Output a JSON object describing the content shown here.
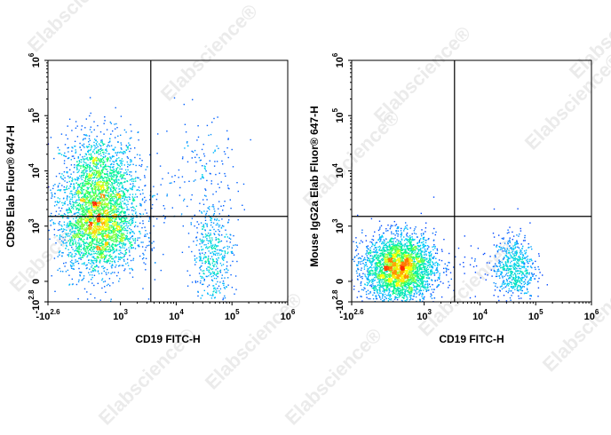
{
  "watermark": {
    "text": "Elabscience",
    "symbol": "®",
    "color": "#d9d9d9"
  },
  "colors": {
    "axis": "#000000",
    "density_low": "#0000ff",
    "density_mid": "#00e0ff",
    "density_high": "#ffff00",
    "density_peak": "#ff3000"
  },
  "chart_data": [
    {
      "type": "scatter",
      "title": "",
      "xlabel": "CD19 FITC-H",
      "ylabel": "CD95 Elab Fluor® 647-H",
      "x_scale": "logicle",
      "y_scale": "logicle",
      "xlim": [
        -400,
        1000000
      ],
      "ylim": [
        -630,
        1000000
      ],
      "x_ticks": [
        {
          "base": "-10",
          "exp": "2.6",
          "value": -400
        },
        {
          "base": "10",
          "exp": "3",
          "value": 1000
        },
        {
          "base": "10",
          "exp": "4",
          "value": 10000
        },
        {
          "base": "10",
          "exp": "5",
          "value": 100000
        },
        {
          "base": "10",
          "exp": "6",
          "value": 1000000
        }
      ],
      "y_ticks": [
        {
          "base": "-10",
          "exp": "2.8",
          "value": -630
        },
        {
          "base": "0",
          "exp": "",
          "value": 0
        },
        {
          "base": "10",
          "exp": "3",
          "value": 1000
        },
        {
          "base": "10",
          "exp": "4",
          "value": 10000
        },
        {
          "base": "10",
          "exp": "5",
          "value": 100000
        },
        {
          "base": "10",
          "exp": "6",
          "value": 1000000
        }
      ],
      "gate_x": 3500,
      "gate_y": 1500,
      "populations": [
        {
          "name": "",
          "x_center": 600,
          "y_center": 5000,
          "x_spread_decades": 0.35,
          "y_spread_decades": 0.5,
          "count": 1800
        },
        {
          "name": "",
          "x_center": 600,
          "y_center": 900,
          "x_spread_decades": 0.35,
          "y_spread_decades": 0.4,
          "count": 1800
        },
        {
          "name": "",
          "x_center": 45000,
          "y_center": 500,
          "x_spread_decades": 0.18,
          "y_spread_decades": 0.45,
          "count": 450
        },
        {
          "name": "",
          "x_center": 30000,
          "y_center": 8000,
          "x_spread_decades": 0.35,
          "y_spread_decades": 0.5,
          "count": 120
        },
        {
          "name": "",
          "x_center": 6000,
          "y_center": 3000,
          "x_spread_decades": 0.4,
          "y_spread_decades": 0.6,
          "count": 60
        }
      ]
    },
    {
      "type": "scatter",
      "title": "",
      "xlabel": "CD19 FITC-H",
      "ylabel": "Mouse IgG2a Elab Fluor® 647-H",
      "x_scale": "logicle",
      "y_scale": "logicle",
      "xlim": [
        -400,
        1000000
      ],
      "ylim": [
        -630,
        1000000
      ],
      "x_ticks": [
        {
          "base": "-10",
          "exp": "2.6",
          "value": -400
        },
        {
          "base": "10",
          "exp": "3",
          "value": 1000
        },
        {
          "base": "10",
          "exp": "4",
          "value": 10000
        },
        {
          "base": "10",
          "exp": "5",
          "value": 100000
        },
        {
          "base": "10",
          "exp": "6",
          "value": 1000000
        }
      ],
      "y_ticks": [
        {
          "base": "-10",
          "exp": "2.8",
          "value": -630
        },
        {
          "base": "0",
          "exp": "",
          "value": 0
        },
        {
          "base": "10",
          "exp": "3",
          "value": 1000
        },
        {
          "base": "10",
          "exp": "4",
          "value": 10000
        },
        {
          "base": "10",
          "exp": "5",
          "value": 100000
        },
        {
          "base": "10",
          "exp": "6",
          "value": 1000000
        }
      ],
      "gate_x": 3500,
      "gate_y": 1500,
      "populations": [
        {
          "name": "",
          "x_center": 550,
          "y_center": 250,
          "x_spread_decades": 0.32,
          "y_spread_decades": 0.3,
          "count": 3000
        },
        {
          "name": "",
          "x_center": 40000,
          "y_center": 250,
          "x_spread_decades": 0.18,
          "y_spread_decades": 0.3,
          "count": 600
        },
        {
          "name": "",
          "x_center": 8000,
          "y_center": 300,
          "x_spread_decades": 0.4,
          "y_spread_decades": 0.3,
          "count": 40
        }
      ]
    }
  ]
}
